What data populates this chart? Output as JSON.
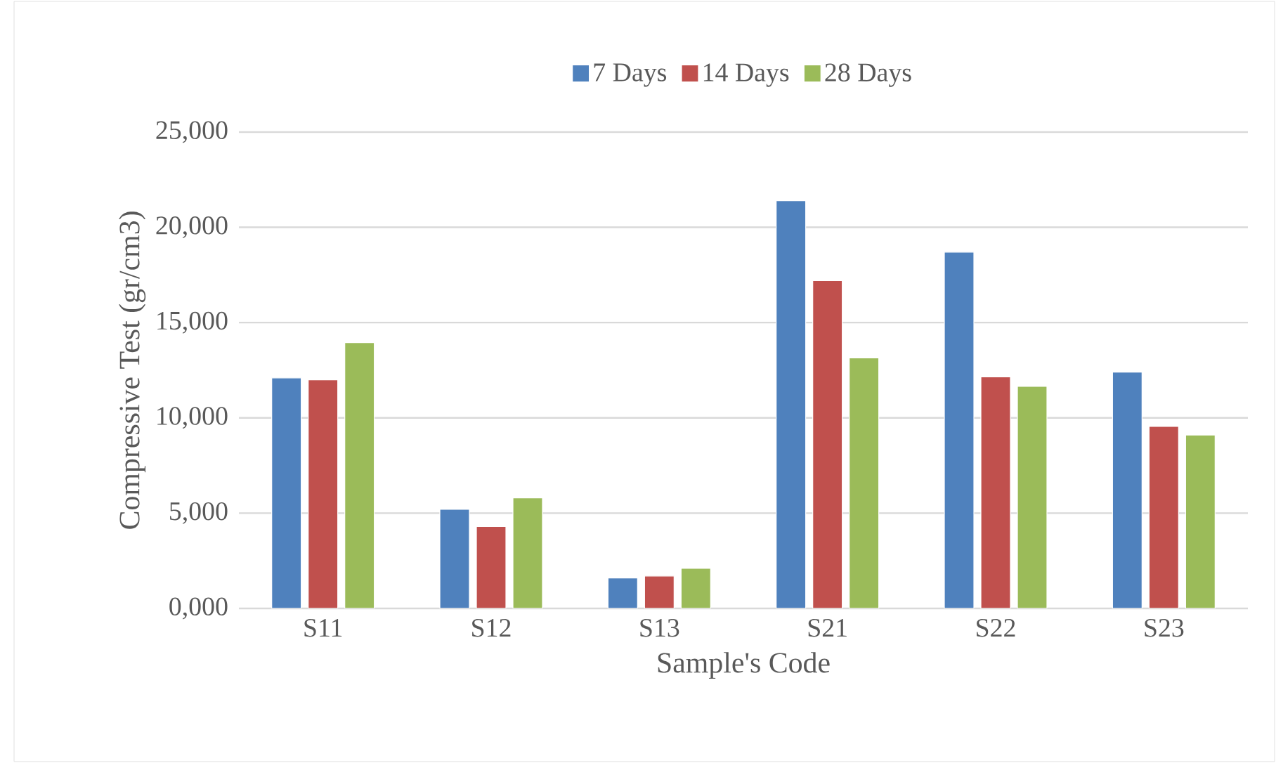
{
  "chart_data": {
    "type": "bar",
    "xlabel": "Sample's Code",
    "ylabel": "Compressive Test (gr/cm3)",
    "categories": [
      "S11",
      "S12",
      "S13",
      "S21",
      "S22",
      "S23"
    ],
    "series": [
      {
        "name": "7 Days",
        "color": "#4f81bd",
        "values": [
          12100,
          5200,
          1600,
          21400,
          18700,
          12400
        ]
      },
      {
        "name": "14 Days",
        "color": "#c0504d",
        "values": [
          12000,
          4300,
          1700,
          17200,
          12150,
          9550
        ]
      },
      {
        "name": "28 Days",
        "color": "#9bbb59",
        "values": [
          13950,
          5800,
          2100,
          13150,
          11650,
          9100
        ]
      }
    ],
    "ylim": [
      0,
      25000
    ],
    "yticks": [
      {
        "value": 0,
        "label": "0,000"
      },
      {
        "value": 5000,
        "label": "5,000"
      },
      {
        "value": 10000,
        "label": "10,000"
      },
      {
        "value": 15000,
        "label": "15,000"
      },
      {
        "value": 20000,
        "label": "20,000"
      },
      {
        "value": 25000,
        "label": "25,000"
      }
    ],
    "grid": "y",
    "legend": "top"
  }
}
